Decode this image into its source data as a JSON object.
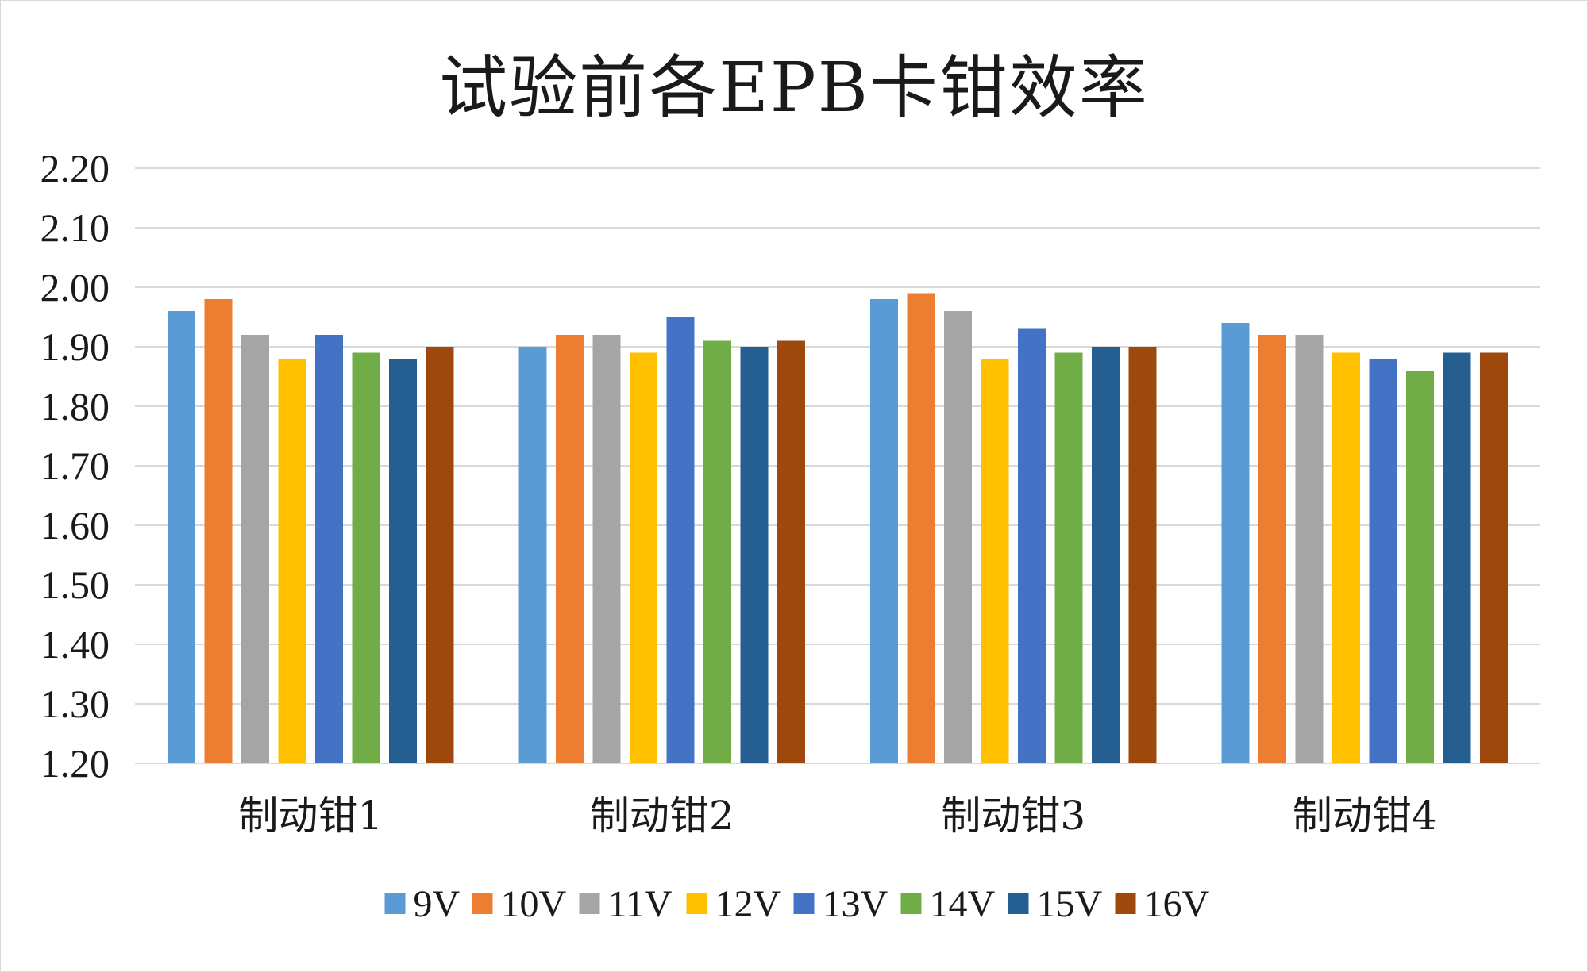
{
  "chart_data": {
    "type": "bar",
    "title": "试验前各EPB卡钳效率",
    "xlabel": "",
    "ylabel": "",
    "ylim": [
      1.2,
      2.2
    ],
    "yticks": [
      "1.20",
      "1.30",
      "1.40",
      "1.50",
      "1.60",
      "1.70",
      "1.80",
      "1.90",
      "2.00",
      "2.10",
      "2.20"
    ],
    "grid": true,
    "legend_position": "bottom",
    "categories": [
      "制动钳1",
      "制动钳2",
      "制动钳3",
      "制动钳4"
    ],
    "series": [
      {
        "name": "9V",
        "color": "#5b9bd5",
        "values": [
          1.96,
          1.9,
          1.98,
          1.94
        ]
      },
      {
        "name": "10V",
        "color": "#ed7d31",
        "values": [
          1.98,
          1.92,
          1.99,
          1.92
        ]
      },
      {
        "name": "11V",
        "color": "#a5a5a5",
        "values": [
          1.92,
          1.92,
          1.96,
          1.92
        ]
      },
      {
        "name": "12V",
        "color": "#ffc000",
        "values": [
          1.88,
          1.89,
          1.88,
          1.89
        ]
      },
      {
        "name": "13V",
        "color": "#4472c4",
        "values": [
          1.92,
          1.95,
          1.93,
          1.88
        ]
      },
      {
        "name": "14V",
        "color": "#70ad47",
        "values": [
          1.89,
          1.91,
          1.89,
          1.86
        ]
      },
      {
        "name": "15V",
        "color": "#255e91",
        "values": [
          1.88,
          1.9,
          1.9,
          1.89
        ]
      },
      {
        "name": "16V",
        "color": "#9e480e",
        "values": [
          1.9,
          1.91,
          1.9,
          1.89
        ]
      }
    ]
  }
}
